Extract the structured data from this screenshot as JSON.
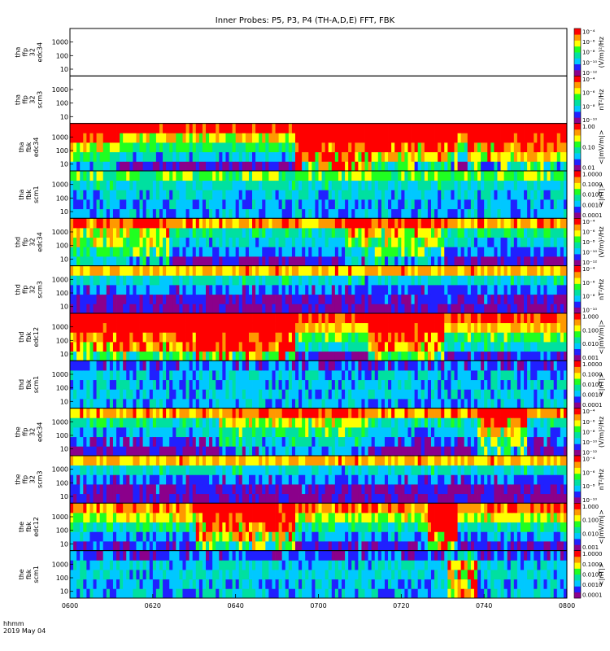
{
  "page": {
    "title": "Inner Probes: P5, P3, P4 (TH-A,D,E) FFT, FBK",
    "time_title_line1": "hhmm",
    "time_title_line2": "2019 May 04"
  },
  "chart_data": {
    "type": "heatmap",
    "title": "Inner Probes: P5, P3, P4 (TH-A,D,E) FFT, FBK",
    "x_axis": {
      "label": "hhmm",
      "date": "2019 May 04",
      "range": [
        "0600",
        "0800"
      ],
      "tick_labels": [
        "0600",
        "0620",
        "0640",
        "0700",
        "0720",
        "0740",
        "0800"
      ]
    },
    "y_axis_scale": "log",
    "y_tick_labels": [
      "10",
      "100",
      "1000"
    ],
    "colormap": [
      "#8b008b",
      "#2020ff",
      "#00c8ff",
      "#00e0a0",
      "#20ff20",
      "#ffff00",
      "#ff9900",
      "#ff0000",
      "#000000"
    ],
    "panels": [
      {
        "id": "tha_ffp32_edc34",
        "ylabel": [
          "tha",
          "ffp",
          "32",
          "edc34"
        ],
        "colorbar_unit": "(V/m)²/Hz",
        "colorbar_ticks": [
          "10⁻⁴",
          "10⁻⁶",
          "10⁻⁸",
          "10⁻¹⁰",
          "10⁻¹²"
        ],
        "data_present": false
      },
      {
        "id": "tha_ffp32_scm3",
        "ylabel": [
          "tha",
          "ffp",
          "32",
          "scm3"
        ],
        "colorbar_unit": "nT²/Hz",
        "colorbar_ticks": [
          "10⁻⁴",
          "10⁻⁶",
          "10⁻⁸",
          "10⁻¹⁰"
        ],
        "data_present": false
      },
      {
        "id": "tha_fbk_edc34",
        "ylabel": [
          "tha",
          "fbk",
          "edc34"
        ],
        "colorbar_unit": "<|mV/m|>",
        "colorbar_ticks": [
          "1.00",
          "0.10",
          "0.01"
        ],
        "data_present": true,
        "row_bias": [
          0.1,
          0.35,
          0.5,
          0.7,
          0.95
        ],
        "time_activity": [
          [
            0,
            0.1,
            0.3
          ],
          [
            0.45,
            0.6,
            0.9
          ],
          [
            0.6,
            0.78,
            0.6
          ],
          [
            0.8,
            1.0,
            0.5
          ]
        ]
      },
      {
        "id": "tha_fbk_scm1",
        "ylabel": [
          "tha",
          "fbk",
          "scm1"
        ],
        "colorbar_unit": "<|nT|>",
        "colorbar_ticks": [
          "1.0000",
          "0.1000",
          "0.0100",
          "0.0010",
          "0.0001"
        ],
        "data_present": true,
        "row_bias": [
          0.25,
          0.25,
          0.3,
          0.35,
          0.55
        ],
        "time_activity": [
          [
            0,
            1.0,
            0.05
          ]
        ]
      },
      {
        "id": "thd_ffp32_edc34",
        "ylabel": [
          "thd",
          "ffp",
          "32",
          "edc34"
        ],
        "colorbar_unit": "(V/m)²/Hz",
        "colorbar_ticks": [
          "10⁻⁴",
          "10⁻⁶",
          "10⁻⁸",
          "10⁻¹⁰",
          "10⁻¹²"
        ],
        "data_present": true,
        "row_bias": [
          0.1,
          0.25,
          0.35,
          0.45,
          0.8
        ],
        "time_activity": [
          [
            0,
            0.2,
            0.4
          ],
          [
            0.55,
            0.75,
            0.4
          ]
        ]
      },
      {
        "id": "thd_ffp32_scm3",
        "ylabel": [
          "thd",
          "ffp",
          "32",
          "scm3"
        ],
        "colorbar_unit": "nT²/Hz",
        "colorbar_ticks": [
          "10⁻⁴",
          "10⁻⁶",
          "10⁻⁸",
          "10⁻¹⁰"
        ],
        "data_present": true,
        "row_bias": [
          0.05,
          0.1,
          0.2,
          0.35,
          0.75
        ],
        "time_activity": [
          [
            0,
            1.0,
            0.05
          ]
        ]
      },
      {
        "id": "thd_fbk_edc12",
        "ylabel": [
          "thd",
          "fbk",
          "edc12"
        ],
        "colorbar_unit": "<|mV/m|>",
        "colorbar_ticks": [
          "1.000",
          "0.100",
          "0.010",
          "0.001"
        ],
        "data_present": true,
        "row_bias": [
          0.15,
          0.4,
          0.55,
          0.75,
          0.9
        ],
        "time_activity": [
          [
            0,
            0.25,
            0.6
          ],
          [
            0.25,
            0.45,
            0.9
          ],
          [
            0.6,
            0.75,
            0.6
          ]
        ]
      },
      {
        "id": "thd_fbk_scm1",
        "ylabel": [
          "thd",
          "fbk",
          "scm1"
        ],
        "colorbar_unit": "<|nT|>",
        "colorbar_ticks": [
          "1.0000",
          "0.1000",
          "0.0100",
          "0.0010",
          "0.0001"
        ],
        "data_present": true,
        "row_bias": [
          0.3,
          0.3,
          0.3,
          0.3,
          0.2
        ],
        "time_activity": [
          [
            0,
            1.0,
            0.02
          ]
        ]
      },
      {
        "id": "the_ffp32_edc34",
        "ylabel": [
          "the",
          "ffp",
          "32",
          "edc34"
        ],
        "colorbar_unit": "(V/m)²/Hz",
        "colorbar_ticks": [
          "10⁻⁴",
          "10⁻⁶",
          "10⁻⁸",
          "10⁻¹⁰",
          "10⁻¹²"
        ],
        "data_present": true,
        "row_bias": [
          0.08,
          0.2,
          0.3,
          0.45,
          0.8
        ],
        "time_activity": [
          [
            0.3,
            0.6,
            0.3
          ],
          [
            0.82,
            0.92,
            0.6
          ]
        ]
      },
      {
        "id": "the_ffp32_scm3",
        "ylabel": [
          "the",
          "ffp",
          "32",
          "scm3"
        ],
        "colorbar_unit": "nT²/Hz",
        "colorbar_ticks": [
          "10⁻⁴",
          "10⁻⁶",
          "10⁻⁸",
          "10⁻¹⁰"
        ],
        "data_present": true,
        "row_bias": [
          0.05,
          0.1,
          0.2,
          0.35,
          0.75
        ],
        "time_activity": [
          [
            0,
            1.0,
            0.05
          ]
        ]
      },
      {
        "id": "the_fbk_edc12",
        "ylabel": [
          "the",
          "fbk",
          "edc12"
        ],
        "colorbar_unit": "<|mV/m|>",
        "colorbar_ticks": [
          "1.000",
          "0.100",
          "0.010",
          "0.001"
        ],
        "data_present": true,
        "row_bias": [
          0.15,
          0.3,
          0.45,
          0.65,
          0.85
        ],
        "time_activity": [
          [
            0.25,
            0.45,
            0.6
          ],
          [
            0.72,
            0.78,
            0.9
          ]
        ]
      },
      {
        "id": "the_fbk_scm1",
        "ylabel": [
          "the",
          "fbk",
          "scm1"
        ],
        "colorbar_unit": "<|nT|>",
        "colorbar_ticks": [
          "1.0000",
          "0.1000",
          "0.0100",
          "0.0010",
          "0.0001"
        ],
        "data_present": true,
        "row_bias": [
          0.3,
          0.3,
          0.35,
          0.35,
          0.2
        ],
        "time_activity": [
          [
            0.76,
            0.82,
            0.7
          ]
        ]
      }
    ]
  }
}
